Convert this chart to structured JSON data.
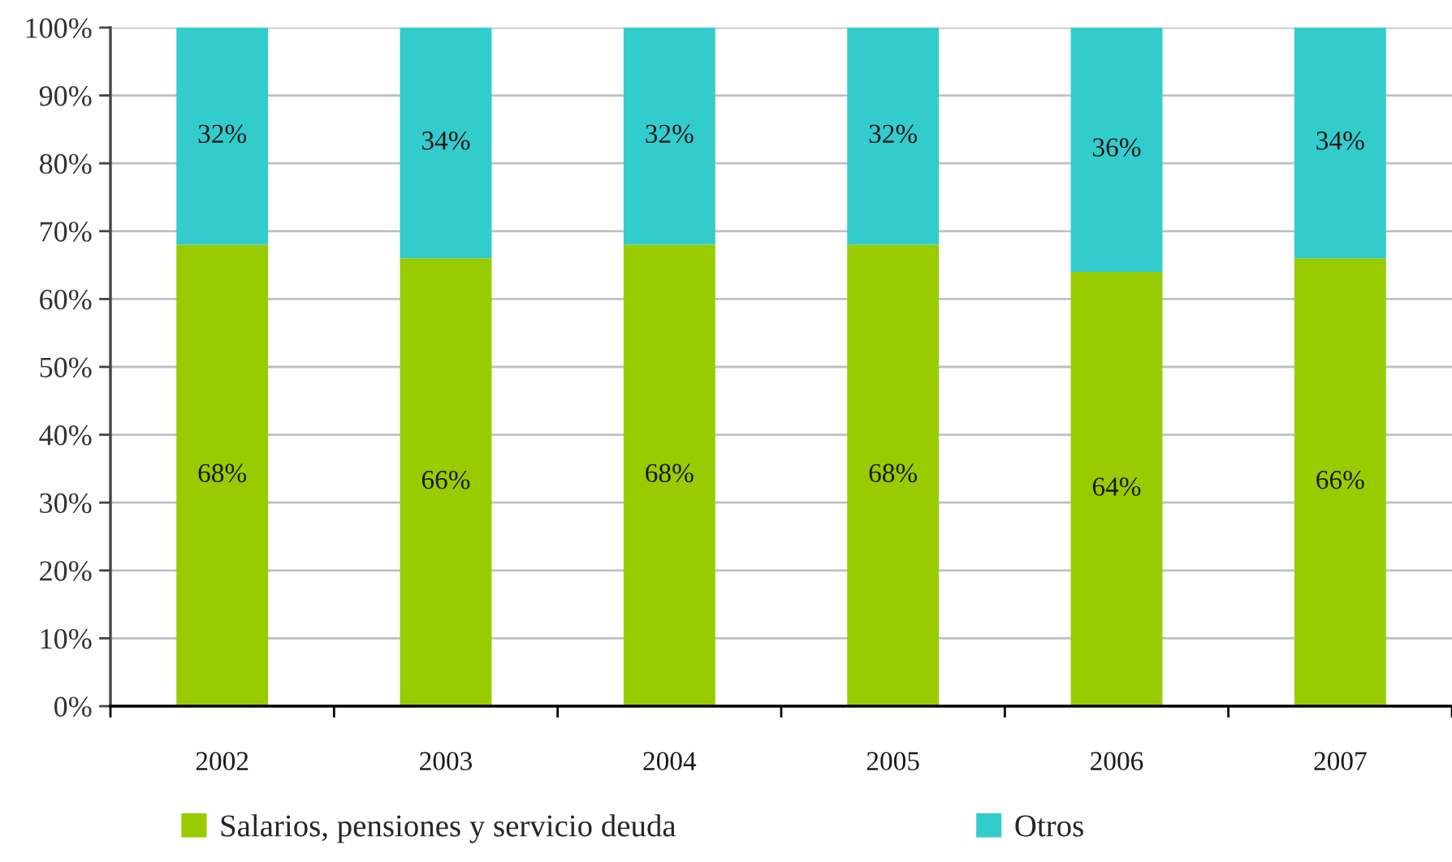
{
  "chart_data": {
    "type": "bar",
    "stacked": true,
    "categories": [
      "2002",
      "2003",
      "2004",
      "2005",
      "2006",
      "2007"
    ],
    "series": [
      {
        "name": "Salarios, pensiones y servicio deuda",
        "color": "#99cc00",
        "values": [
          68,
          66,
          68,
          68,
          64,
          66
        ],
        "value_labels": [
          "68%",
          "66%",
          "68%",
          "68%",
          "64%",
          "66%"
        ]
      },
      {
        "name": "Otros",
        "color": "#33cccc",
        "values": [
          32,
          34,
          32,
          32,
          36,
          34
        ],
        "value_labels": [
          "32%",
          "34%",
          "32%",
          "32%",
          "36%",
          "34%"
        ]
      }
    ],
    "ylim": [
      0,
      100
    ],
    "yticks": [
      {
        "value": 0,
        "label": "0%"
      },
      {
        "value": 10,
        "label": "10%"
      },
      {
        "value": 20,
        "label": "20%"
      },
      {
        "value": 30,
        "label": "30%"
      },
      {
        "value": 40,
        "label": "40%"
      },
      {
        "value": 50,
        "label": "50%"
      },
      {
        "value": 60,
        "label": "60%"
      },
      {
        "value": 70,
        "label": "70%"
      },
      {
        "value": 80,
        "label": "80%"
      },
      {
        "value": 90,
        "label": "90%"
      },
      {
        "value": 100,
        "label": "100%"
      }
    ],
    "grid": "y",
    "legend": "bottom"
  }
}
